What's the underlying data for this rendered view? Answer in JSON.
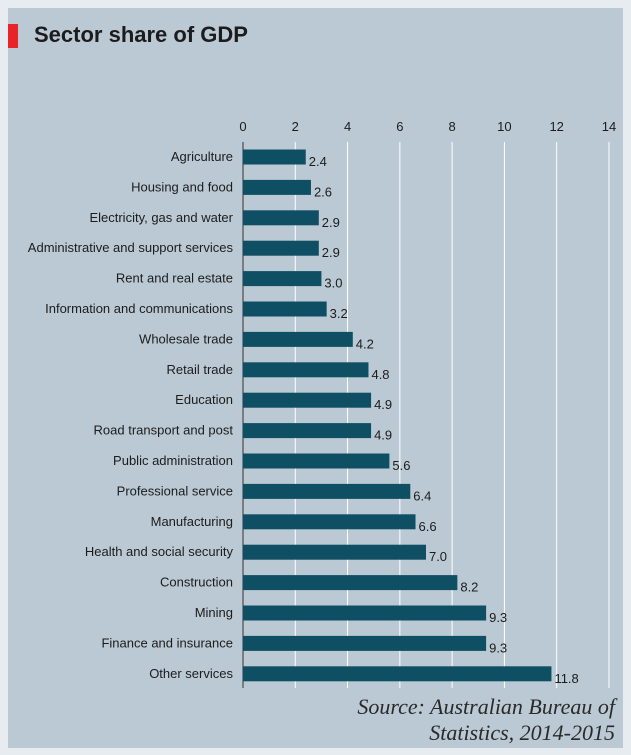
{
  "header": {
    "title": "Sector share of GDP"
  },
  "colors": {
    "bar": "#0f4f63",
    "background": "#bac9d4",
    "accent": "#e8232a",
    "grid": "#ffffff"
  },
  "chart_data": {
    "type": "bar",
    "orientation": "horizontal",
    "title": "Sector share of GDP",
    "xlabel": "",
    "ylabel": "",
    "xlim": [
      0,
      14
    ],
    "xticks": [
      0,
      2,
      4,
      6,
      8,
      10,
      12,
      14
    ],
    "grid": true,
    "categories": [
      "Agriculture",
      "Housing and food",
      "Electricity, gas and water",
      "Administrative and support services",
      "Rent and real estate",
      "Information and communications",
      "Wholesale trade",
      "Retail trade",
      "Education",
      "Road transport and post",
      "Public administration",
      "Professional service",
      "Manufacturing",
      "Health and social security",
      "Construction",
      "Mining",
      "Finance and insurance",
      "Other services"
    ],
    "values": [
      2.4,
      2.6,
      2.9,
      2.9,
      3.0,
      3.2,
      4.2,
      4.8,
      4.9,
      4.9,
      5.6,
      6.4,
      6.6,
      7.0,
      8.2,
      9.3,
      9.3,
      11.8
    ],
    "value_labels": [
      "2.4",
      "2.6",
      "2.9",
      "2.9",
      "3.0",
      "3.2",
      "4.2",
      "4.8",
      "4.9",
      "4.9",
      "5.6",
      "6.4",
      "6.6",
      "7.0",
      "8.2",
      "9.3",
      "9.3",
      "11.8"
    ]
  },
  "footer": {
    "source": "Source: Australian Bureau of Statistics, 2014-2015"
  }
}
